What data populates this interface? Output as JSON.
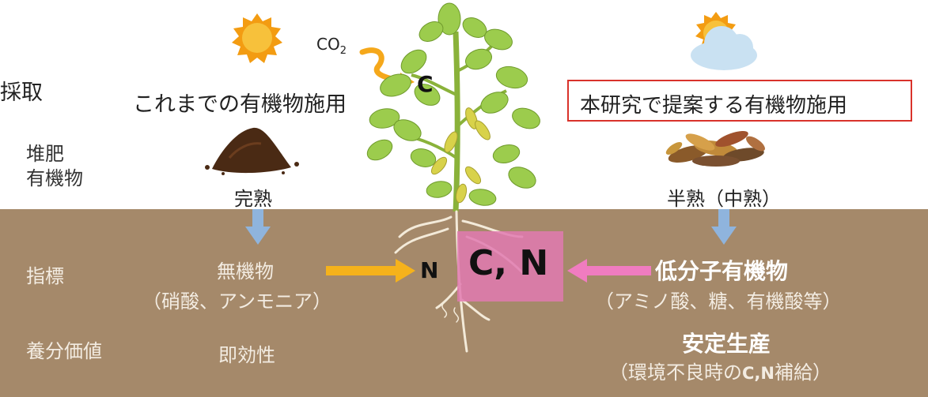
{
  "left_partial_label": "採取",
  "conventional_title": "これまでの有機物施用",
  "proposal_title": "本研究で提案する有機物施用",
  "co2": {
    "main": "CO",
    "sub": "2"
  },
  "carbon_label": "C",
  "rows": {
    "material": "堆肥\n有機物",
    "indicator": "指標",
    "nutrient_value": "養分価値"
  },
  "conventional": {
    "maturity": "完熟",
    "indicator_main": "無機物",
    "indicator_sub": "（硝酸、アンモニア）",
    "nutrient_value": "即効性"
  },
  "proposal": {
    "maturity": "半熟（中熟）",
    "indicator_main": "低分子有機物",
    "indicator_sub": "（アミノ酸、糖、有機酸等）",
    "nutrient_main": "安定生産",
    "nutrient_sub_prefix": "（環境不良時の",
    "nutrient_sub_cn": "C,N",
    "nutrient_sub_suffix": "補給）"
  },
  "root_labels": {
    "n": "N",
    "cn": "C, N"
  },
  "colors": {
    "soil": "#a5896a",
    "orange_arrow": "#f5b21b",
    "pink_arrow": "#f07cc0",
    "blue_arrow": "#8fb4dd",
    "proposal_border": "#d9322b",
    "leaf": "#9ccc4d",
    "sun": "#f7b731"
  }
}
